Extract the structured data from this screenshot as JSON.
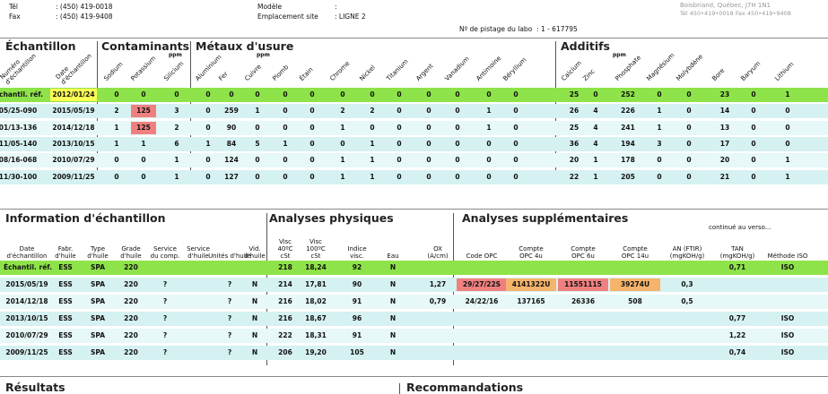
{
  "header": {
    "tel_label": "Tél",
    "tel": ": (450) 419-0018",
    "fax_label": "Fax",
    "fax": ": (450) 419-9408",
    "model_label": "Modèle",
    "model": ":",
    "site_label": "Emplacement site",
    "site": ": LIGNE 2",
    "tracking": "Nº de pistage du labo  : 1 - 617795",
    "address": "Boisbriand, Québec, J7H 1N1",
    "contact": "Tél 450•419•0018 Fax 450•419•9408"
  },
  "top_table": {
    "sections": [
      {
        "title": "Échantillon"
      },
      {
        "title": "Contaminants",
        "unit": "ppm"
      },
      {
        "title": "Métaux d'usure",
        "unit": "ppm"
      },
      {
        "title": "Additifs",
        "unit": "ppm"
      }
    ],
    "columns": [
      "Numéro\nd'échantillon",
      "Date\nd'échantillon",
      "Sodium",
      "Potassium",
      "Silicium",
      "Aluminium",
      "Fer",
      "Cuivre",
      "Plomb",
      "Étain",
      "Chrome",
      "Nickel",
      "Titanium",
      "Argent",
      "Vanadium",
      "Antimoine",
      "Béryllium",
      "Calcium",
      "Zinc",
      "Phosphate",
      "Magnésium",
      "Molybdène",
      "Bore",
      "Baryum",
      "Lithium"
    ],
    "rows": [
      [
        "Échantil. réf.",
        "2012/01/24",
        "0",
        "0",
        "0",
        "0",
        "0",
        "0",
        "0",
        "0",
        "0",
        "0",
        "0",
        "0",
        "0",
        "0",
        "0",
        "25",
        "0",
        "252",
        "0",
        "0",
        "23",
        "0",
        "1"
      ],
      [
        "05/25-090",
        "2015/05/19",
        "2",
        "125",
        "3",
        "0",
        "259",
        "1",
        "0",
        "0",
        "2",
        "2",
        "0",
        "0",
        "0",
        "1",
        "0",
        "26",
        "4",
        "226",
        "1",
        "0",
        "14",
        "0",
        "0"
      ],
      [
        "01/13-136",
        "2014/12/18",
        "1",
        "125",
        "2",
        "0",
        "90",
        "0",
        "0",
        "0",
        "1",
        "0",
        "0",
        "0",
        "0",
        "1",
        "0",
        "25",
        "4",
        "241",
        "1",
        "0",
        "13",
        "0",
        "0"
      ],
      [
        "11/05-140",
        "2013/10/15",
        "1",
        "1",
        "6",
        "1",
        "84",
        "5",
        "1",
        "0",
        "0",
        "1",
        "0",
        "0",
        "0",
        "0",
        "0",
        "36",
        "4",
        "194",
        "3",
        "0",
        "17",
        "0",
        "0"
      ],
      [
        "08/16-068",
        "2010/07/29",
        "0",
        "0",
        "1",
        "0",
        "124",
        "0",
        "0",
        "0",
        "1",
        "1",
        "0",
        "0",
        "0",
        "0",
        "0",
        "20",
        "1",
        "178",
        "0",
        "0",
        "20",
        "0",
        "1"
      ],
      [
        "11/30-100",
        "2009/11/25",
        "0",
        "0",
        "1",
        "0",
        "127",
        "0",
        "0",
        "0",
        "1",
        "1",
        "0",
        "0",
        "0",
        "0",
        "0",
        "22",
        "1",
        "205",
        "0",
        "0",
        "21",
        "0",
        "1"
      ]
    ]
  },
  "bottom_table": {
    "sections": [
      {
        "title": "Information d'échantillon"
      },
      {
        "title": "Analyses physiques"
      },
      {
        "title": "Analyses supplémentaires"
      }
    ],
    "note": "continué au verso...",
    "columns": [
      "Date\nd'échantillon",
      "Fabr.\nd'huile",
      "Type\nd'huile",
      "Grade\nd'huile",
      "Service\ndu comp.",
      "Service\nd'huile",
      "Unités d'huile",
      "Vid.\nd'huile",
      "Visc\n40ºC\ncSt",
      "Visc\n100ºC\ncSt",
      "Indice\nvisc.",
      "Eau",
      "OX\n(A/cm)",
      "Code OPC",
      "Compte\nOPC 4u",
      "Compte\nOPC 6u",
      "Compte\nOPC 14u",
      "AN (FTIR)\n(mgKOH/g)",
      "TAN\n(mgKOH/g)",
      "Méthode ISO"
    ],
    "rows": [
      [
        "Échantil. réf.",
        "ESS",
        "SPA",
        "220",
        null,
        null,
        null,
        null,
        "218",
        "18,24",
        "92",
        "N",
        null,
        null,
        null,
        null,
        null,
        null,
        "0,71",
        "ISO"
      ],
      [
        "2015/05/19",
        "ESS",
        "SPA",
        "220",
        "?",
        null,
        "?",
        "N",
        "214",
        "17,81",
        "90",
        "N",
        "1,27",
        "29/27/22S",
        "4141322U",
        "11551115",
        "39274U",
        "0,3",
        null,
        null
      ],
      [
        "2014/12/18",
        "ESS",
        "SPA",
        "220",
        "?",
        null,
        "?",
        "N",
        "216",
        "18,02",
        "91",
        "N",
        "0,79",
        "24/22/16",
        "137165",
        "26336",
        "508",
        "0,5",
        null,
        null
      ],
      [
        "2013/10/15",
        "ESS",
        "SPA",
        "220",
        "?",
        null,
        "?",
        "N",
        "216",
        "18,67",
        "96",
        "N",
        null,
        null,
        null,
        null,
        null,
        null,
        "0,77",
        "ISO"
      ],
      [
        "2010/07/29",
        "ESS",
        "SPA",
        "220",
        "?",
        null,
        "?",
        "N",
        "222",
        "18,31",
        "91",
        "N",
        null,
        null,
        null,
        null,
        null,
        null,
        "1,22",
        "ISO"
      ],
      [
        "2009/11/25",
        "ESS",
        "SPA",
        "220",
        "?",
        null,
        "?",
        "N",
        "206",
        "19,20",
        "105",
        "N",
        null,
        null,
        null,
        null,
        null,
        null,
        "0,74",
        "ISO"
      ]
    ]
  },
  "footer": {
    "results": "Résultats",
    "recommendations": "Recommandations"
  }
}
